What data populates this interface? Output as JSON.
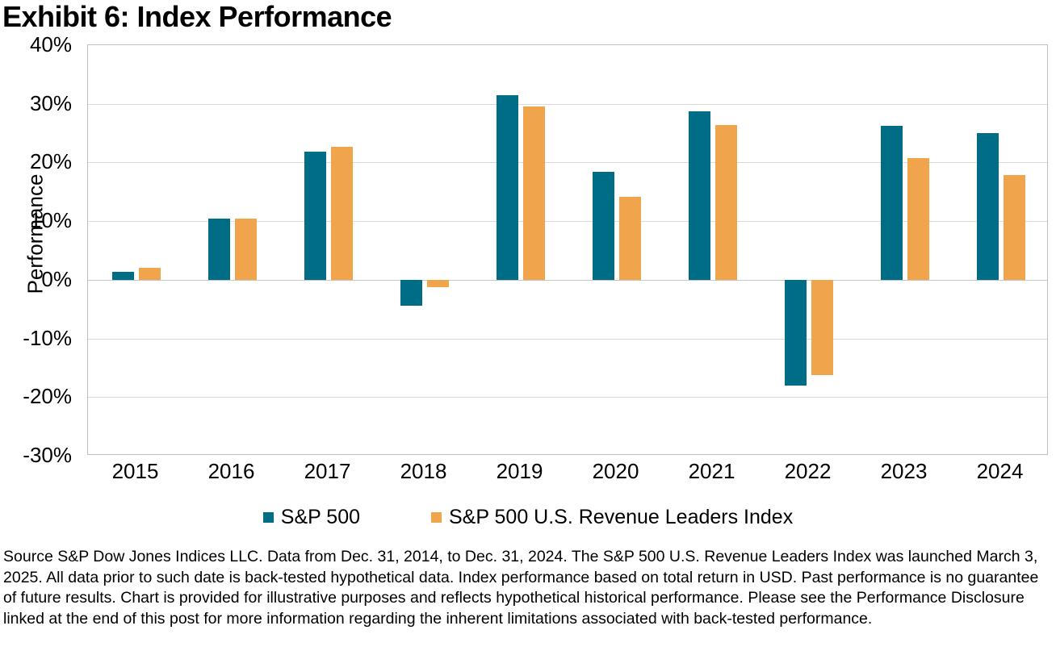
{
  "title": "Exhibit 6: Index Performance",
  "chart_data": {
    "type": "bar",
    "categories": [
      "2015",
      "2016",
      "2017",
      "2018",
      "2019",
      "2020",
      "2021",
      "2022",
      "2023",
      "2024"
    ],
    "series": [
      {
        "name": "S&P 500",
        "color": "#006d87",
        "values": [
          1.4,
          10.4,
          21.8,
          -4.4,
          31.5,
          18.4,
          28.7,
          -18.1,
          26.3,
          25.0
        ]
      },
      {
        "name": "S&P 500 U.S. Revenue Leaders Index",
        "color": "#f0a44c",
        "values": [
          2.1,
          10.4,
          22.7,
          -1.2,
          29.5,
          14.2,
          26.4,
          -16.2,
          20.7,
          17.8
        ]
      }
    ],
    "title": "Exhibit 6: Index Performance",
    "xlabel": "",
    "ylabel": "Performance",
    "ylim": [
      -30,
      40
    ],
    "ytick_step": 10,
    "ytick_suffix": "%",
    "grid": true,
    "legend_position": "bottom"
  },
  "footnote": "Source S&P Dow Jones Indices LLC. Data from Dec. 31, 2014, to Dec. 31, 2024. The S&P 500 U.S. Revenue Leaders Index was launched March 3, 2025. All data prior to such date is back-tested hypothetical data. Index performance based on total return in USD. Past performance is no guarantee of future results. Chart is provided for illustrative purposes and reflects hypothetical historical performance. Please see the Performance Disclosure linked at the end of this post for more information regarding the inherent limitations associated with back-tested performance."
}
